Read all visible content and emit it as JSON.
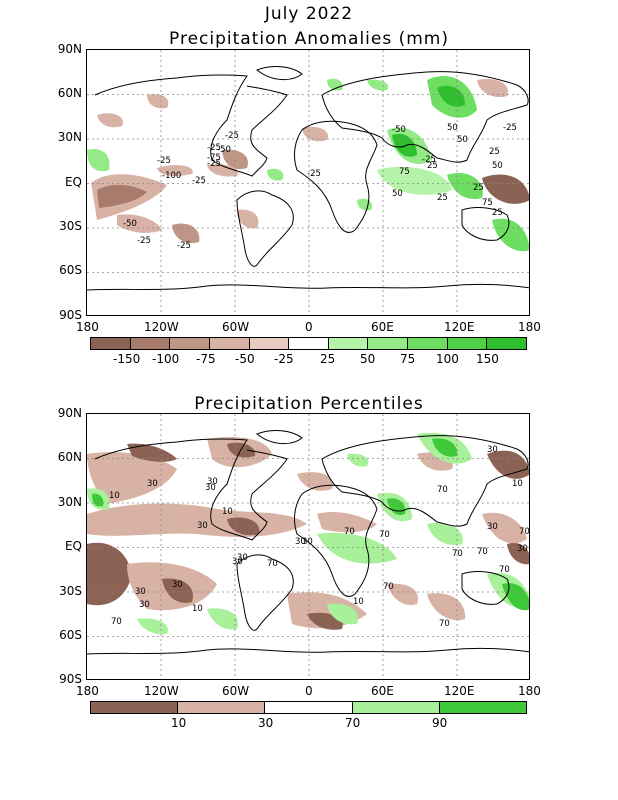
{
  "header": {
    "title": "July 2022"
  },
  "panel1": {
    "title": "Precipitation Anomalies (mm)",
    "lat_labels": [
      "90N",
      "60N",
      "30N",
      "EQ",
      "30S",
      "60S",
      "90S"
    ],
    "lon_labels": [
      "180",
      "120W",
      "60W",
      "0",
      "60E",
      "120E",
      "180"
    ],
    "contour_labels": [
      "-25",
      "-25",
      "-25",
      "-50",
      "-25",
      "-100",
      "-25",
      "-25",
      "-75",
      "-50",
      "-25",
      "-25",
      "-50",
      "-25",
      "25",
      "50",
      "25",
      "50",
      "25",
      "50",
      "75",
      "50",
      "75",
      "25",
      "25",
      "-25"
    ],
    "legend": {
      "labels": [
        "-150",
        "-100",
        "-75",
        "-50",
        "-25",
        "25",
        "50",
        "75",
        "100",
        "150"
      ],
      "colors": [
        "#8c6254",
        "#a87b6c",
        "#bf9585",
        "#d8b3a5",
        "#ffffff",
        "#b4f3a8",
        "#93ea86",
        "#6ede63",
        "#4fd047",
        "#2fbe2d"
      ]
    }
  },
  "panel2": {
    "title": "Precipitation Percentiles",
    "lat_labels": [
      "90N",
      "60N",
      "30N",
      "EQ",
      "30S",
      "60S",
      "90S"
    ],
    "lon_labels": [
      "180",
      "120W",
      "60W",
      "0",
      "60E",
      "120E",
      "180"
    ],
    "contour_labels": [
      "10",
      "30",
      "30",
      "30",
      "10",
      "30",
      "30",
      "70",
      "30",
      "70",
      "70",
      "30",
      "70",
      "70",
      "10",
      "70",
      "30",
      "30",
      "30",
      "10",
      "70",
      "70",
      "30",
      "10",
      "70",
      "30",
      "70",
      "70",
      "30",
      "30"
    ],
    "legend": {
      "labels": [
        "10",
        "30",
        "70",
        "90"
      ],
      "colors": [
        "#8c6254",
        "#d8b3a5",
        "#ffffff",
        "#a8f09a",
        "#3ec83a"
      ]
    }
  }
}
